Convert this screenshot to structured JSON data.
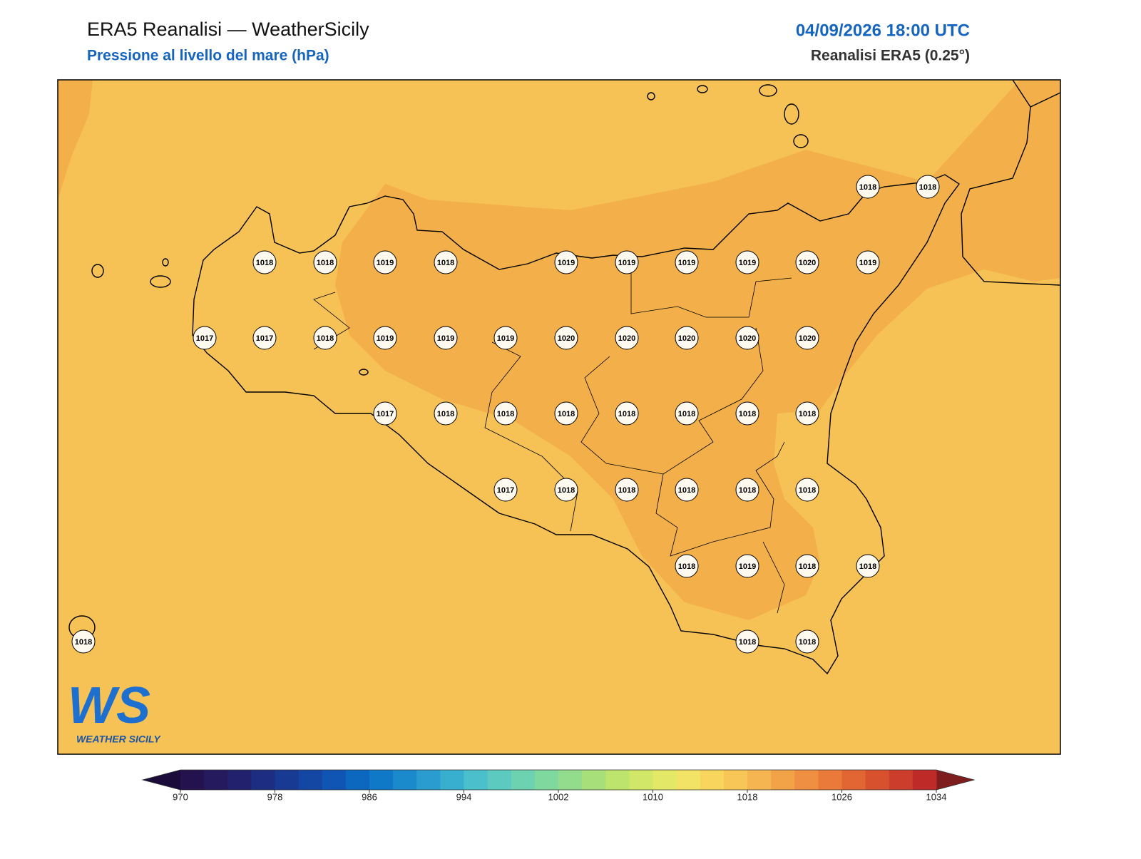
{
  "header": {
    "title": "ERA5 Reanalisi — WeatherSicily",
    "subtitle": "Pressione al livello del mare (hPa)",
    "datetime": "04/09/2026 18:00 UTC",
    "source": "Reanalisi ERA5 (0.25°)"
  },
  "map": {
    "sea_color": "#f6c155",
    "high_color": "#f3b04a",
    "stations": {
      "values": [
        1018,
        1018,
        1018,
        1018,
        1019,
        1018,
        1019,
        1019,
        1019,
        1019,
        1020,
        1019,
        1017,
        1017,
        1018,
        1019,
        1019,
        1019,
        1020,
        1020,
        1020,
        1020,
        1020,
        1017,
        1018,
        1018,
        1018,
        1018,
        1018,
        1018,
        1018,
        1017,
        1018,
        1018,
        1018,
        1018,
        1018,
        1018,
        1019,
        1018,
        1018,
        1018,
        1018,
        1018
      ]
    }
  },
  "colorbar": {
    "range": [
      970,
      1034
    ],
    "ticks": [
      970,
      978,
      986,
      994,
      1002,
      1010,
      1018,
      1026,
      1034
    ],
    "colors": [
      "#23124e",
      "#251a5e",
      "#22216d",
      "#1d2d82",
      "#183a93",
      "#1446a3",
      "#1055b4",
      "#0c67bf",
      "#0f79c7",
      "#1a8acc",
      "#2a9ccf",
      "#39afd0",
      "#4bbfcb",
      "#5ccabf",
      "#6dd2b0",
      "#7fd89e",
      "#93dc8c",
      "#a7e07a",
      "#bde46c",
      "#d1e767",
      "#e3e866",
      "#f2e266",
      "#f8d55d",
      "#f8c657",
      "#f5b550",
      "#f2a348",
      "#ee8f41",
      "#e97a3a",
      "#e26534",
      "#d8512f",
      "#cc3d2b",
      "#bd2a28"
    ],
    "under": "#1b0b3a",
    "over": "#7e1d1d"
  },
  "logo": {
    "mark": "WS",
    "text": "WEATHER SICILY"
  }
}
